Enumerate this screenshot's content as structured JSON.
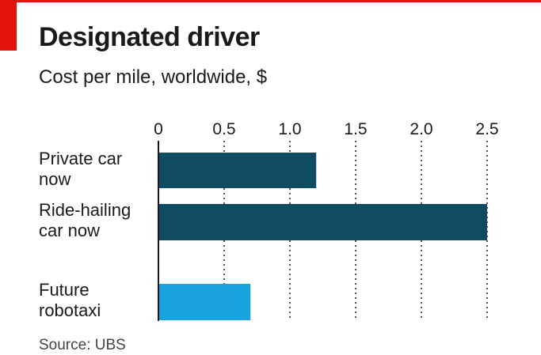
{
  "brand": {
    "accent": "#e3120b"
  },
  "chart_data": {
    "type": "bar",
    "orientation": "horizontal",
    "title": "Designated driver",
    "subtitle": "Cost per mile, worldwide, $",
    "source": "Source: UBS",
    "categories": [
      [
        "Private car",
        "now"
      ],
      [
        "Ride-hailing",
        "car now"
      ],
      [
        "Future",
        "robotaxi"
      ]
    ],
    "values": [
      1.2,
      2.5,
      0.7
    ],
    "bar_colors": [
      "#0f4c64",
      "#0f4c64",
      "#19a4e0"
    ],
    "xlim": [
      0,
      2.5
    ],
    "ticks": [
      0,
      0.5,
      1.0,
      1.5,
      2.0,
      2.5
    ],
    "tick_labels": [
      "0",
      "0.5",
      "1.0",
      "1.5",
      "2.0",
      "2.5"
    ],
    "grid": "vertical dotted",
    "position_axis": "top"
  }
}
